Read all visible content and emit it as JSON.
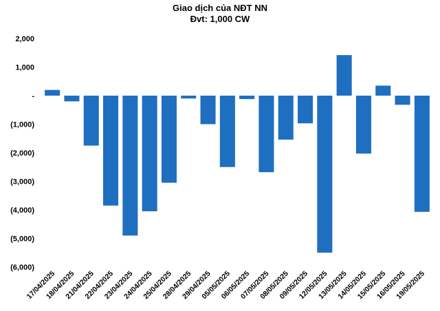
{
  "chart_data": {
    "type": "bar",
    "title": "Giao dịch của NĐT NN",
    "subtitle": "Đvt: 1,000 CW",
    "categories": [
      "17/04/2025",
      "18/04/2025",
      "21/04/2025",
      "22/04/2025",
      "23/04/2025",
      "24/04/2025",
      "25/04/2025",
      "28/04/2025",
      "29/04/2025",
      "05/05/2025",
      "06/05/2025",
      "07/05/2025",
      "08/05/2025",
      "09/05/2025",
      "12/05/2025",
      "13/05/2025",
      "14/05/2025",
      "15/05/2025",
      "16/05/2025",
      "19/05/2025"
    ],
    "values": [
      200,
      -200,
      -1750,
      -3850,
      -4900,
      -4050,
      -3050,
      -100,
      -1000,
      -2500,
      -120,
      -2680,
      -1540,
      -970,
      -5500,
      1420,
      -2030,
      350,
      -320,
      -4070
    ],
    "ylim": [
      -6000,
      2000
    ],
    "yticks": [
      2000,
      1000,
      0,
      -1000,
      -2000,
      -3000,
      -4000,
      -5000,
      -6000
    ],
    "ytick_labels": [
      "2,000",
      "1,000",
      "-",
      "(1,000)",
      "(2,000)",
      "(3,000)",
      "(4,000)",
      "(5,000)",
      "(6,000)"
    ],
    "grid": false,
    "legend": "none",
    "bar_color": "#1f6fc1",
    "xlabel": "",
    "ylabel": ""
  }
}
